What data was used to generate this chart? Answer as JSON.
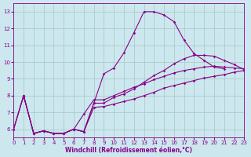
{
  "xlabel": "Windchill (Refroidissement éolien,°C)",
  "background_color": "#cce8ee",
  "grid_color": "#aacccc",
  "line_color": "#880088",
  "xlim": [
    0,
    23
  ],
  "ylim": [
    5.5,
    13.5
  ],
  "yticks": [
    6,
    7,
    8,
    9,
    10,
    11,
    12,
    13
  ],
  "xticks": [
    0,
    1,
    2,
    3,
    4,
    5,
    6,
    7,
    8,
    9,
    10,
    11,
    12,
    13,
    14,
    15,
    16,
    17,
    18,
    19,
    20,
    21,
    22,
    23
  ],
  "series": [
    {
      "x": [
        0,
        1,
        2,
        3,
        4,
        5,
        6,
        7,
        8,
        9,
        10,
        11,
        12,
        13,
        14,
        15,
        16,
        17,
        18,
        19,
        20,
        21
      ],
      "y": [
        6.0,
        8.0,
        5.75,
        5.9,
        5.75,
        5.75,
        6.0,
        5.85,
        7.55,
        9.3,
        9.65,
        10.55,
        11.75,
        13.0,
        13.0,
        12.8,
        12.4,
        11.3,
        10.5,
        10.1,
        9.7,
        9.6
      ]
    },
    {
      "x": [
        0,
        1,
        2,
        3,
        4,
        5,
        6,
        7,
        8,
        9,
        10,
        11,
        12,
        13,
        14,
        15,
        16,
        17,
        18,
        19,
        20,
        21,
        22,
        23
      ],
      "y": [
        6.0,
        8.0,
        5.75,
        5.9,
        5.75,
        5.75,
        6.0,
        5.85,
        7.55,
        7.55,
        7.9,
        8.1,
        8.4,
        8.8,
        9.2,
        9.5,
        9.9,
        10.2,
        10.4,
        10.4,
        10.35,
        10.1,
        9.85,
        9.55
      ]
    },
    {
      "x": [
        0,
        1,
        2,
        3,
        4,
        5,
        6,
        7,
        8,
        9,
        10,
        11,
        12,
        13,
        14,
        15,
        16,
        17,
        18,
        19,
        20,
        21,
        22,
        23
      ],
      "y": [
        6.0,
        8.0,
        5.75,
        5.9,
        5.75,
        5.75,
        6.0,
        6.9,
        7.75,
        7.75,
        8.0,
        8.25,
        8.5,
        8.7,
        8.95,
        9.15,
        9.35,
        9.5,
        9.6,
        9.7,
        9.75,
        9.7,
        9.65,
        9.6
      ]
    },
    {
      "x": [
        1,
        2,
        3,
        4,
        5,
        6,
        7,
        8,
        9,
        10,
        11,
        12,
        13,
        14,
        15,
        16,
        17,
        18,
        19,
        20,
        21,
        22,
        23
      ],
      "y": [
        8.0,
        5.75,
        5.9,
        5.75,
        5.75,
        6.0,
        5.85,
        7.3,
        7.35,
        7.5,
        7.65,
        7.8,
        8.0,
        8.2,
        8.45,
        8.6,
        8.75,
        8.9,
        9.05,
        9.15,
        9.25,
        9.4,
        9.5
      ]
    }
  ],
  "marker": "D",
  "markersize": 1.8,
  "linewidth": 0.8,
  "tick_fontsize": 5.0,
  "xlabel_fontsize": 5.5
}
